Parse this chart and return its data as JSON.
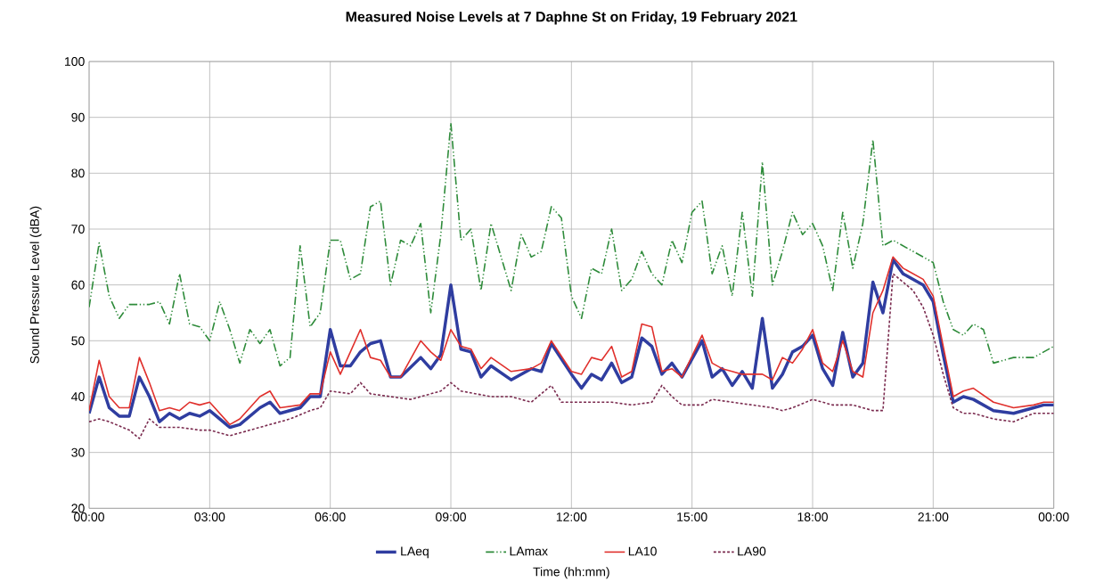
{
  "chart_data": {
    "type": "line",
    "title": "Measured Noise Levels at 7 Daphne St on Friday, 19 February 2021",
    "xlabel": "Time (hh:mm)",
    "ylabel": "Sound Pressure Level (dBA)",
    "xlim": [
      0,
      24
    ],
    "ylim": [
      20,
      100
    ],
    "xticks": [
      {
        "value": 0,
        "label": "00:00"
      },
      {
        "value": 3,
        "label": "03:00"
      },
      {
        "value": 6,
        "label": "06:00"
      },
      {
        "value": 9,
        "label": "09:00"
      },
      {
        "value": 12,
        "label": "12:00"
      },
      {
        "value": 15,
        "label": "15:00"
      },
      {
        "value": 18,
        "label": "18:00"
      },
      {
        "value": 21,
        "label": "21:00"
      },
      {
        "value": 24,
        "label": "00:00"
      }
    ],
    "yticks": [
      20,
      30,
      40,
      50,
      60,
      70,
      80,
      90,
      100
    ],
    "grid": true,
    "legend": "bottom",
    "series": [
      {
        "name": "LAeq",
        "color": "#2f3da0",
        "line_style": "solid",
        "x": [
          0,
          0.25,
          0.5,
          0.75,
          1.0,
          1.25,
          1.5,
          1.75,
          2.0,
          2.25,
          2.5,
          2.75,
          3.0,
          3.5,
          3.75,
          4.25,
          4.5,
          4.75,
          5.25,
          5.5,
          5.75,
          6.0,
          6.25,
          6.5,
          6.75,
          7.0,
          7.25,
          7.5,
          7.75,
          8.25,
          8.5,
          8.75,
          9.0,
          9.25,
          9.5,
          9.75,
          10.0,
          10.5,
          11.0,
          11.25,
          11.5,
          12.0,
          12.25,
          12.5,
          12.75,
          13.0,
          13.25,
          13.5,
          13.75,
          14.0,
          14.25,
          14.5,
          14.75,
          15.25,
          15.5,
          15.75,
          16.0,
          16.25,
          16.5,
          16.75,
          17.0,
          17.25,
          17.5,
          17.75,
          18.0,
          18.25,
          18.5,
          18.75,
          19.0,
          19.25,
          19.5,
          19.75,
          20.0,
          20.25,
          20.75,
          21.0,
          21.25,
          21.5,
          21.75,
          22.0,
          22.5,
          23.0,
          23.5,
          23.75,
          24
        ],
        "values": [
          37,
          43.5,
          38,
          36.5,
          36.5,
          43.5,
          40,
          35.5,
          37,
          36,
          37,
          36.5,
          37.5,
          34.5,
          35,
          38,
          39,
          37,
          38,
          40,
          40,
          52,
          45.5,
          45.5,
          48,
          49.5,
          50,
          43.5,
          43.5,
          47,
          45,
          47.5,
          60,
          48.5,
          48,
          43.5,
          45.5,
          43,
          45,
          44.5,
          49.5,
          44,
          41.5,
          44,
          43,
          46,
          42.5,
          43.5,
          50.5,
          49,
          44,
          46,
          43.5,
          50,
          43.5,
          45,
          42,
          44.5,
          41.5,
          54,
          41.5,
          44,
          48,
          49,
          51,
          45,
          42,
          51.5,
          43.5,
          46,
          60.5,
          55,
          64.5,
          62,
          60,
          57,
          47.5,
          39,
          40,
          39.5,
          37.5,
          37,
          38,
          38.5,
          38.5
        ]
      },
      {
        "name": "LAmax",
        "color": "#2e8b3a",
        "line_style": "dashed",
        "x": [
          0,
          0.25,
          0.5,
          0.75,
          1.0,
          1.25,
          1.5,
          1.75,
          2.0,
          2.25,
          2.5,
          2.75,
          3.0,
          3.25,
          3.5,
          3.75,
          4.0,
          4.25,
          4.5,
          4.75,
          5.0,
          5.25,
          5.5,
          5.75,
          6.0,
          6.25,
          6.5,
          6.75,
          7.0,
          7.25,
          7.5,
          7.75,
          8.0,
          8.25,
          8.5,
          8.75,
          9.0,
          9.25,
          9.5,
          9.75,
          10.0,
          10.25,
          10.5,
          10.75,
          11.0,
          11.25,
          11.5,
          11.75,
          12.0,
          12.25,
          12.5,
          12.75,
          13.0,
          13.25,
          13.5,
          13.75,
          14.0,
          14.25,
          14.5,
          14.75,
          15.0,
          15.25,
          15.5,
          15.75,
          16.0,
          16.25,
          16.5,
          16.75,
          17.0,
          17.25,
          17.5,
          17.75,
          18.0,
          18.25,
          18.5,
          18.75,
          19.0,
          19.25,
          19.5,
          19.75,
          20.0,
          20.5,
          21.0,
          21.25,
          21.5,
          21.75,
          22.0,
          22.25,
          22.5,
          23.0,
          23.5,
          24
        ],
        "values": [
          56,
          67.5,
          58,
          54,
          56.5,
          56.5,
          56.5,
          57,
          53,
          62,
          53,
          52.5,
          50,
          57,
          52,
          46,
          52,
          49.5,
          52,
          45.5,
          47,
          67,
          52.5,
          55,
          68,
          68,
          61,
          62,
          74,
          75,
          60,
          68,
          67,
          71,
          55,
          69,
          89,
          68,
          70,
          59,
          71,
          65,
          59,
          69,
          65,
          66,
          74,
          72,
          58,
          54,
          63,
          62,
          70,
          59,
          61,
          66,
          62,
          60,
          68,
          64,
          73,
          75,
          62,
          67,
          58,
          73,
          58,
          82,
          60,
          66,
          73,
          69,
          71,
          67,
          59,
          73,
          63,
          71,
          86,
          67,
          68,
          66,
          64,
          57,
          52,
          51,
          53,
          52,
          46,
          47,
          47,
          49
        ]
      },
      {
        "name": "LA10",
        "color": "#e0302c",
        "line_style": "solid",
        "x": [
          0,
          0.25,
          0.5,
          0.75,
          1.0,
          1.25,
          1.5,
          1.75,
          2.0,
          2.25,
          2.5,
          2.75,
          3.0,
          3.5,
          3.75,
          4.25,
          4.5,
          4.75,
          5.25,
          5.5,
          5.75,
          6.0,
          6.25,
          6.5,
          6.75,
          7.0,
          7.25,
          7.5,
          7.75,
          8.25,
          8.5,
          8.75,
          9.0,
          9.25,
          9.5,
          9.75,
          10.0,
          10.5,
          11.0,
          11.25,
          11.5,
          12.0,
          12.25,
          12.5,
          12.75,
          13.0,
          13.25,
          13.5,
          13.75,
          14.0,
          14.25,
          14.5,
          14.75,
          15.25,
          15.5,
          15.75,
          16.0,
          16.25,
          16.5,
          16.75,
          17.0,
          17.25,
          17.5,
          17.75,
          18.0,
          18.25,
          18.5,
          18.75,
          19.0,
          19.25,
          19.5,
          19.75,
          20.0,
          20.25,
          20.75,
          21.0,
          21.25,
          21.5,
          21.75,
          22.0,
          22.5,
          23.0,
          23.5,
          23.75,
          24
        ],
        "values": [
          37.5,
          46.5,
          40,
          38,
          38,
          47,
          42.5,
          37.5,
          38,
          37.5,
          39,
          38.5,
          39,
          35,
          36,
          40,
          41,
          38,
          38.5,
          40.5,
          40.5,
          48,
          44,
          48,
          52,
          47,
          46.5,
          43.5,
          43.5,
          50,
          48,
          46.5,
          52,
          49,
          48.5,
          45,
          47,
          44.5,
          45,
          46,
          50,
          44.5,
          44,
          47,
          46.5,
          49,
          43.5,
          44.5,
          53,
          52.5,
          44.5,
          45,
          43.5,
          51,
          46,
          45,
          44.5,
          44,
          44,
          44,
          43,
          47,
          46,
          48.5,
          52,
          46,
          44.5,
          50,
          44.5,
          43.5,
          55,
          59,
          65,
          63,
          61,
          58,
          49,
          40,
          41,
          41.5,
          39,
          38,
          38.5,
          39,
          39
        ]
      },
      {
        "name": "LA90",
        "color": "#7a2a4e",
        "line_style": "dotted",
        "x": [
          0,
          0.25,
          0.5,
          1.0,
          1.25,
          1.5,
          1.75,
          2.25,
          2.75,
          3.0,
          3.5,
          4.0,
          4.5,
          5.0,
          5.5,
          5.75,
          6.0,
          6.5,
          6.75,
          7.0,
          8.0,
          8.5,
          8.75,
          9.0,
          9.25,
          10.0,
          10.5,
          11.0,
          11.25,
          11.5,
          11.75,
          12.25,
          13.0,
          13.5,
          14.0,
          14.25,
          14.5,
          14.75,
          15.25,
          15.5,
          16.0,
          16.5,
          17.0,
          17.25,
          17.5,
          18.0,
          18.5,
          19.0,
          19.5,
          19.75,
          20.0,
          20.5,
          20.75,
          21.0,
          21.25,
          21.5,
          21.75,
          22.0,
          22.5,
          23.0,
          23.5,
          24
        ],
        "values": [
          35.5,
          36,
          35.5,
          34,
          32.5,
          36,
          34.5,
          34.5,
          34,
          34,
          33,
          34,
          35,
          36,
          37.5,
          38,
          41,
          40.5,
          42.5,
          40.5,
          39.5,
          40.5,
          41,
          42.5,
          41,
          40,
          40,
          39,
          40.5,
          42,
          39,
          39,
          39,
          38.5,
          39,
          42,
          40,
          38.5,
          38.5,
          39.5,
          39,
          38.5,
          38,
          37.5,
          38,
          39.5,
          38.5,
          38.5,
          37.5,
          37.5,
          62,
          59,
          56,
          51,
          44,
          38,
          37,
          37,
          36,
          35.5,
          37,
          37
        ]
      }
    ]
  }
}
